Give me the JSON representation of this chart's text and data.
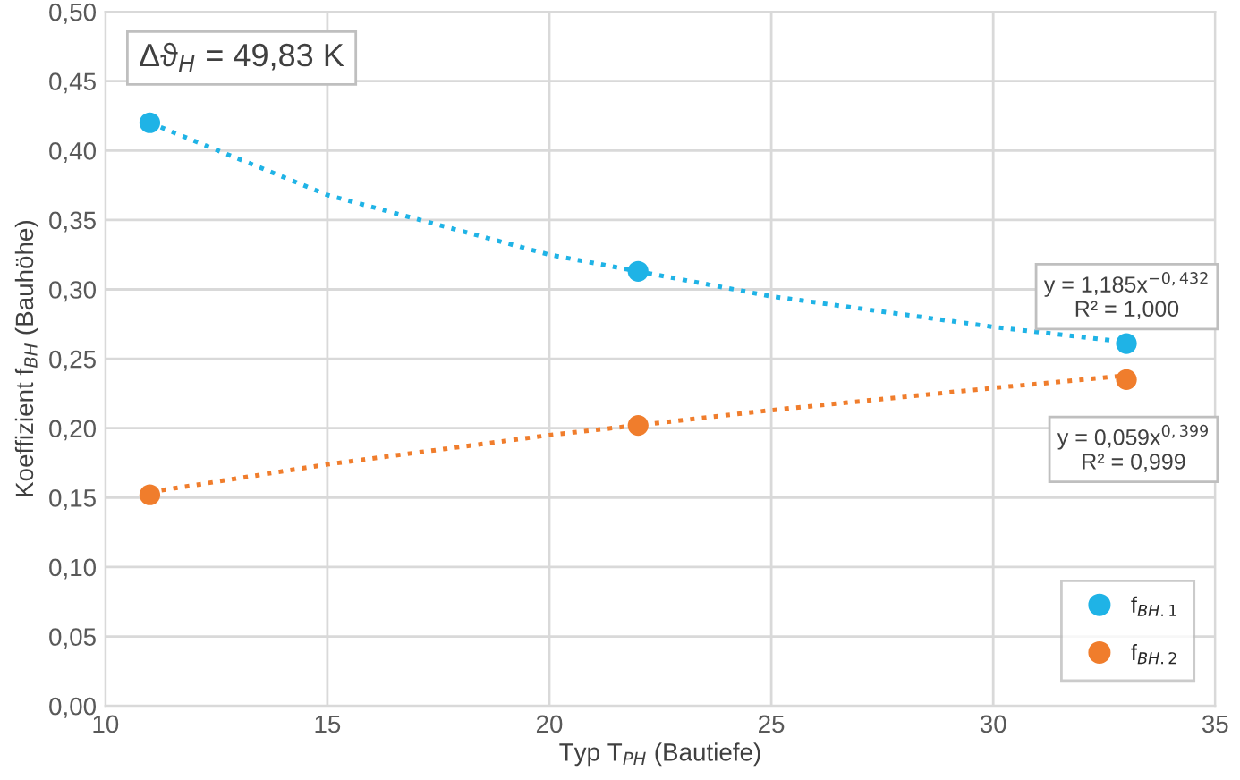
{
  "chart_data": {
    "type": "scatter",
    "xlabel": "Typ T$_{PH}$ (Bautiefe)",
    "ylabel": "Koeffizient f$_{BH}$ (Bauhöhe)",
    "annotations": [
      "Δϑ$_{H}$ = 49,83 K",
      "y = 1,185x$^{−0,432}$\nR² = 1,000",
      "y = 0,059x$^{0,399}$\nR² = 0,999"
    ],
    "series": [
      {
        "type": "line",
        "line_style": "dotted",
        "color": "#1fb3e6",
        "x": [
          11,
          15,
          20,
          25,
          30,
          33
        ],
        "values": [
          0.42,
          0.368,
          0.325,
          0.295,
          0.273,
          0.262
        ]
      },
      {
        "type": "line",
        "line_style": "dotted",
        "color": "#f07d2c",
        "x": [
          11,
          15,
          20,
          25,
          30,
          33
        ],
        "values": [
          0.154,
          0.174,
          0.195,
          0.213,
          0.229,
          0.238
        ]
      },
      {
        "marker": "circle",
        "name": "f$_{BH.1}$",
        "color": "#1fb3e6",
        "x": [
          11,
          22,
          33
        ],
        "values": [
          0.42,
          0.313,
          0.261
        ]
      },
      {
        "marker": "circle",
        "name": "f$_{BH.2}$",
        "color": "#f07d2c",
        "x": [
          11,
          22,
          33
        ],
        "values": [
          0.152,
          0.202,
          0.235
        ]
      }
    ],
    "xlim": [
      10,
      35
    ],
    "xticks": [
      10,
      15,
      20,
      25,
      30,
      35
    ],
    "ylim": [
      0,
      0.5
    ],
    "yticks": [
      {
        "value": 0,
        "label": "0,00"
      },
      {
        "value": 0.05,
        "label": "0,05"
      },
      {
        "value": 0.1,
        "label": "0,10"
      },
      {
        "value": 0.15,
        "label": "0,15"
      },
      {
        "value": 0.2,
        "label": "0,20"
      },
      {
        "value": 0.25,
        "label": "0,25"
      },
      {
        "value": 0.3,
        "label": "0,30"
      },
      {
        "value": 0.35,
        "label": "0,35"
      },
      {
        "value": 0.4,
        "label": "0,40"
      },
      {
        "value": 0.45,
        "label": "0,45"
      },
      {
        "value": 0.5,
        "label": "0,50"
      }
    ],
    "grid": true,
    "legend": "bottom right"
  }
}
